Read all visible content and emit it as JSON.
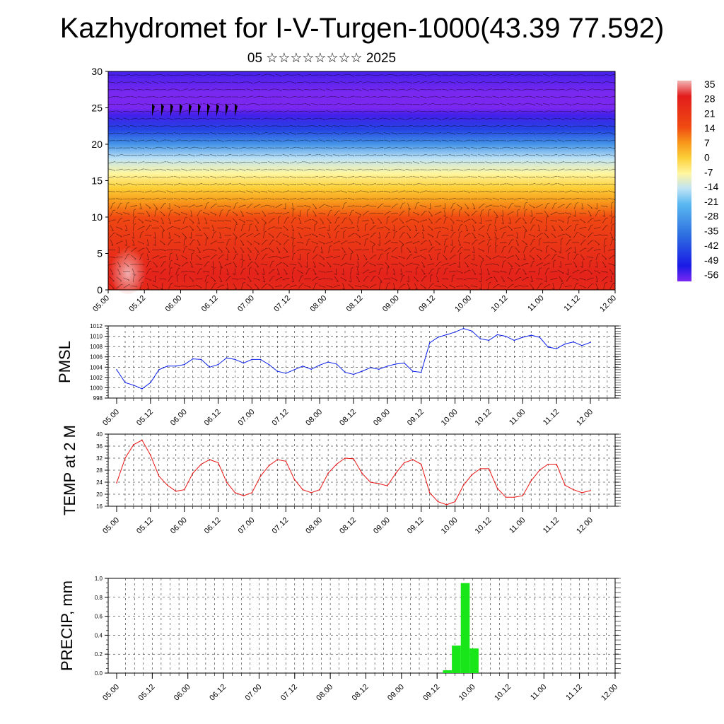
{
  "title": "Kazhydromet for I-V-Turgen-1000(43.39 77.592)",
  "subtitle": "05 ☆☆☆☆☆☆☆☆ 2025",
  "time_ticks": [
    "05.00",
    "05.12",
    "06.00",
    "06.12",
    "07.00",
    "07.12",
    "08.00",
    "08.12",
    "09.00",
    "09.12",
    "10.00",
    "10.12",
    "11.00",
    "11.12",
    "12.00"
  ],
  "chart_data": [
    {
      "type": "heatmap",
      "title": "",
      "xlabel": "",
      "ylabel": "",
      "x": [
        "05.00",
        "05.12",
        "06.00",
        "06.12",
        "07.00",
        "07.12",
        "08.00",
        "08.12",
        "09.00",
        "09.12",
        "10.00",
        "10.12",
        "11.00",
        "11.12",
        "12.00"
      ],
      "yticks": [
        0,
        5,
        10,
        15,
        20,
        25,
        30
      ],
      "ylim": [
        0,
        30
      ],
      "colorbar_labels": [
        "35",
        "28",
        "21",
        "14",
        "7",
        "0",
        "-7",
        "-14",
        "-21",
        "-28",
        "-35",
        "-42",
        "-49",
        "-56"
      ],
      "colors": {
        "warm": "#e21c1c",
        "hot": "#f2b6b6",
        "neutral": "#fff6a0",
        "cold": "#3d8fe8",
        "coldest": "#7a28f0"
      },
      "value_profile": {
        "heights": [
          0,
          2,
          5,
          8,
          10,
          12,
          14,
          16,
          18,
          20,
          22,
          24,
          25,
          27,
          30
        ],
        "values": [
          24,
          26,
          22,
          18,
          14,
          7,
          0,
          -7,
          -14,
          -28,
          -42,
          -52,
          -56,
          -56,
          -52
        ]
      },
      "overlay": "wind barbs"
    },
    {
      "type": "line",
      "title": "",
      "ylabel": "PMSL",
      "xlabel": "",
      "ylim": [
        998,
        1012
      ],
      "yticks": [
        "998",
        "1000",
        "1002",
        "1004",
        "1006",
        "1008",
        "1010",
        "1012"
      ],
      "x": [
        "05.00",
        "05.03",
        "05.06",
        "05.09",
        "05.12",
        "05.15",
        "05.18",
        "05.21",
        "06.00",
        "06.03",
        "06.06",
        "06.09",
        "06.12",
        "06.15",
        "06.18",
        "06.21",
        "07.00",
        "07.03",
        "07.06",
        "07.09",
        "07.12",
        "07.15",
        "07.18",
        "07.21",
        "08.00",
        "08.03",
        "08.06",
        "08.09",
        "08.12",
        "08.15",
        "08.18",
        "08.21",
        "09.00",
        "09.03",
        "09.06",
        "09.09",
        "09.12",
        "09.15",
        "09.18",
        "09.21",
        "10.00",
        "10.03",
        "10.06",
        "10.09",
        "10.12",
        "10.15",
        "10.18",
        "10.21",
        "11.00",
        "11.03",
        "11.06",
        "11.09",
        "11.12",
        "11.15",
        "11.18",
        "11.21",
        "12.00"
      ],
      "series": [
        {
          "values": [
            1003.5,
            1001.0,
            1000.5,
            999.8,
            1001.0,
            1003.5,
            1004.2,
            1004.2,
            1004.5,
            1005.6,
            1005.5,
            1004.0,
            1004.5,
            1005.8,
            1005.5,
            1004.8,
            1005.5,
            1005.5,
            1004.5,
            1003.2,
            1002.8,
            1003.5,
            1004.2,
            1003.6,
            1004.4,
            1005.0,
            1004.6,
            1003.0,
            1002.6,
            1003.2,
            1003.9,
            1003.6,
            1004.2,
            1004.6,
            1004.8,
            1003.2,
            1003.0,
            1008.7,
            1009.8,
            1010.3,
            1010.8,
            1011.5,
            1011.0,
            1009.5,
            1009.2,
            1010.3,
            1010.0,
            1009.2,
            1009.8,
            1010.2,
            1009.8,
            1007.9,
            1007.6,
            1008.5,
            1008.9,
            1008.2,
            1008.8
          ],
          "color": "#0a1de8"
        }
      ]
    },
    {
      "type": "line",
      "title": "",
      "ylabel": "TEMP at 2 M",
      "xlabel": "",
      "ylim": [
        16,
        40
      ],
      "yticks": [
        "16",
        "20",
        "24",
        "28",
        "32",
        "36",
        "40"
      ],
      "x": [
        "05.00",
        "05.03",
        "05.06",
        "05.09",
        "05.12",
        "05.15",
        "05.18",
        "05.21",
        "06.00",
        "06.03",
        "06.06",
        "06.09",
        "06.12",
        "06.15",
        "06.18",
        "06.21",
        "07.00",
        "07.03",
        "07.06",
        "07.09",
        "07.12",
        "07.15",
        "07.18",
        "07.21",
        "08.00",
        "08.03",
        "08.06",
        "08.09",
        "08.12",
        "08.15",
        "08.18",
        "08.21",
        "09.00",
        "09.03",
        "09.06",
        "09.09",
        "09.12",
        "09.15",
        "09.18",
        "09.21",
        "10.00",
        "10.03",
        "10.06",
        "10.09",
        "10.12",
        "10.15",
        "10.18",
        "10.21",
        "11.00",
        "11.03",
        "11.06",
        "11.09",
        "11.12",
        "11.15",
        "11.18",
        "11.21",
        "12.00"
      ],
      "series": [
        {
          "values": [
            23.8,
            32.0,
            36.5,
            38.0,
            33.0,
            26.0,
            23.0,
            21.0,
            21.5,
            27.0,
            30.0,
            31.5,
            30.5,
            24.0,
            20.5,
            19.5,
            20.5,
            26.0,
            29.5,
            31.5,
            31.0,
            25.0,
            21.5,
            20.5,
            21.5,
            27.0,
            30.0,
            32.0,
            31.8,
            27.0,
            24.0,
            23.5,
            22.8,
            27.0,
            30.5,
            31.5,
            30.0,
            20.5,
            17.5,
            16.5,
            17.5,
            23.0,
            26.5,
            28.5,
            28.5,
            22.0,
            19.0,
            19.0,
            19.5,
            24.5,
            28.0,
            30.0,
            30.0,
            23.0,
            21.5,
            20.5,
            21.2
          ],
          "color": "#e81414"
        }
      ]
    },
    {
      "type": "bar",
      "title": "",
      "ylabel": "PRECIP, mm",
      "xlabel": "",
      "ylim": [
        0.0,
        1.0
      ],
      "yticks": [
        "0.0",
        "0.2",
        "0.4",
        "0.6",
        "0.8",
        "1.0"
      ],
      "x": [
        "09.15",
        "09.18",
        "09.21",
        "10.00"
      ],
      "series": [
        {
          "values": [
            0.03,
            0.29,
            0.95,
            0.26
          ],
          "color": "#19e619"
        }
      ]
    }
  ]
}
